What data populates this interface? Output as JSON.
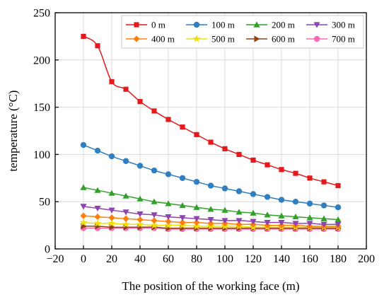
{
  "chart_data": {
    "type": "line",
    "xlabel": "The position of the working face (m)",
    "ylabel": "temperature (°C)",
    "xlim": [
      -20,
      200
    ],
    "ylim": [
      0,
      250
    ],
    "xticks": [
      -20,
      0,
      20,
      40,
      60,
      80,
      100,
      120,
      140,
      160,
      180,
      200
    ],
    "yticks": [
      0,
      50,
      100,
      150,
      200,
      250
    ],
    "grid": true,
    "legend_placement": "top-right",
    "x": [
      0,
      10,
      20,
      30,
      40,
      50,
      60,
      70,
      80,
      90,
      100,
      110,
      120,
      130,
      140,
      150,
      160,
      170,
      180
    ],
    "series": [
      {
        "name": "0 m",
        "color": "#e41a1c",
        "marker": "square",
        "values": [
          225,
          215,
          177,
          169,
          156,
          146,
          137,
          129,
          121,
          113,
          106,
          100,
          94,
          89,
          84,
          80,
          75,
          71,
          67
        ]
      },
      {
        "name": "100 m",
        "color": "#2f7fc1",
        "marker": "circle",
        "values": [
          110,
          104,
          98,
          93,
          88,
          83,
          79,
          75,
          71,
          67,
          64,
          61,
          58,
          55,
          52,
          50,
          48,
          46,
          44
        ]
      },
      {
        "name": "200 m",
        "color": "#33a02c",
        "marker": "triangle-up",
        "values": [
          65,
          62,
          59,
          56,
          53,
          50,
          48,
          46,
          44,
          42,
          41,
          39,
          38,
          36,
          35,
          34,
          33,
          32,
          31
        ]
      },
      {
        "name": "300 m",
        "color": "#8e44ad",
        "marker": "triangle-down",
        "values": [
          45,
          43,
          41,
          39,
          37,
          36,
          34,
          33,
          32,
          31,
          30,
          30,
          29,
          28,
          28,
          27,
          27,
          26,
          26
        ]
      },
      {
        "name": "400 m",
        "color": "#ff7f0e",
        "marker": "diamond",
        "values": [
          35,
          34,
          33,
          32,
          31,
          30,
          29,
          28,
          28,
          27,
          27,
          26,
          26,
          25,
          25,
          25,
          24,
          24,
          24
        ]
      },
      {
        "name": "500 m",
        "color": "#f0e000",
        "marker": "star",
        "values": [
          28,
          27,
          27,
          26,
          26,
          25,
          25,
          25,
          24,
          24,
          24,
          24,
          23,
          23,
          23,
          23,
          23,
          23,
          23
        ]
      },
      {
        "name": "600 m",
        "color": "#8b4513",
        "marker": "triangle-right",
        "values": [
          24,
          24,
          23,
          23,
          23,
          23,
          22,
          22,
          22,
          22,
          22,
          22,
          22,
          22,
          22,
          22,
          22,
          22,
          22
        ]
      },
      {
        "name": "700 m",
        "color": "#ff69b4",
        "marker": "circle",
        "values": [
          22,
          22,
          22,
          22,
          22,
          22,
          21,
          21,
          21,
          21,
          21,
          21,
          21,
          21,
          21,
          21,
          21,
          21,
          21
        ]
      }
    ]
  }
}
